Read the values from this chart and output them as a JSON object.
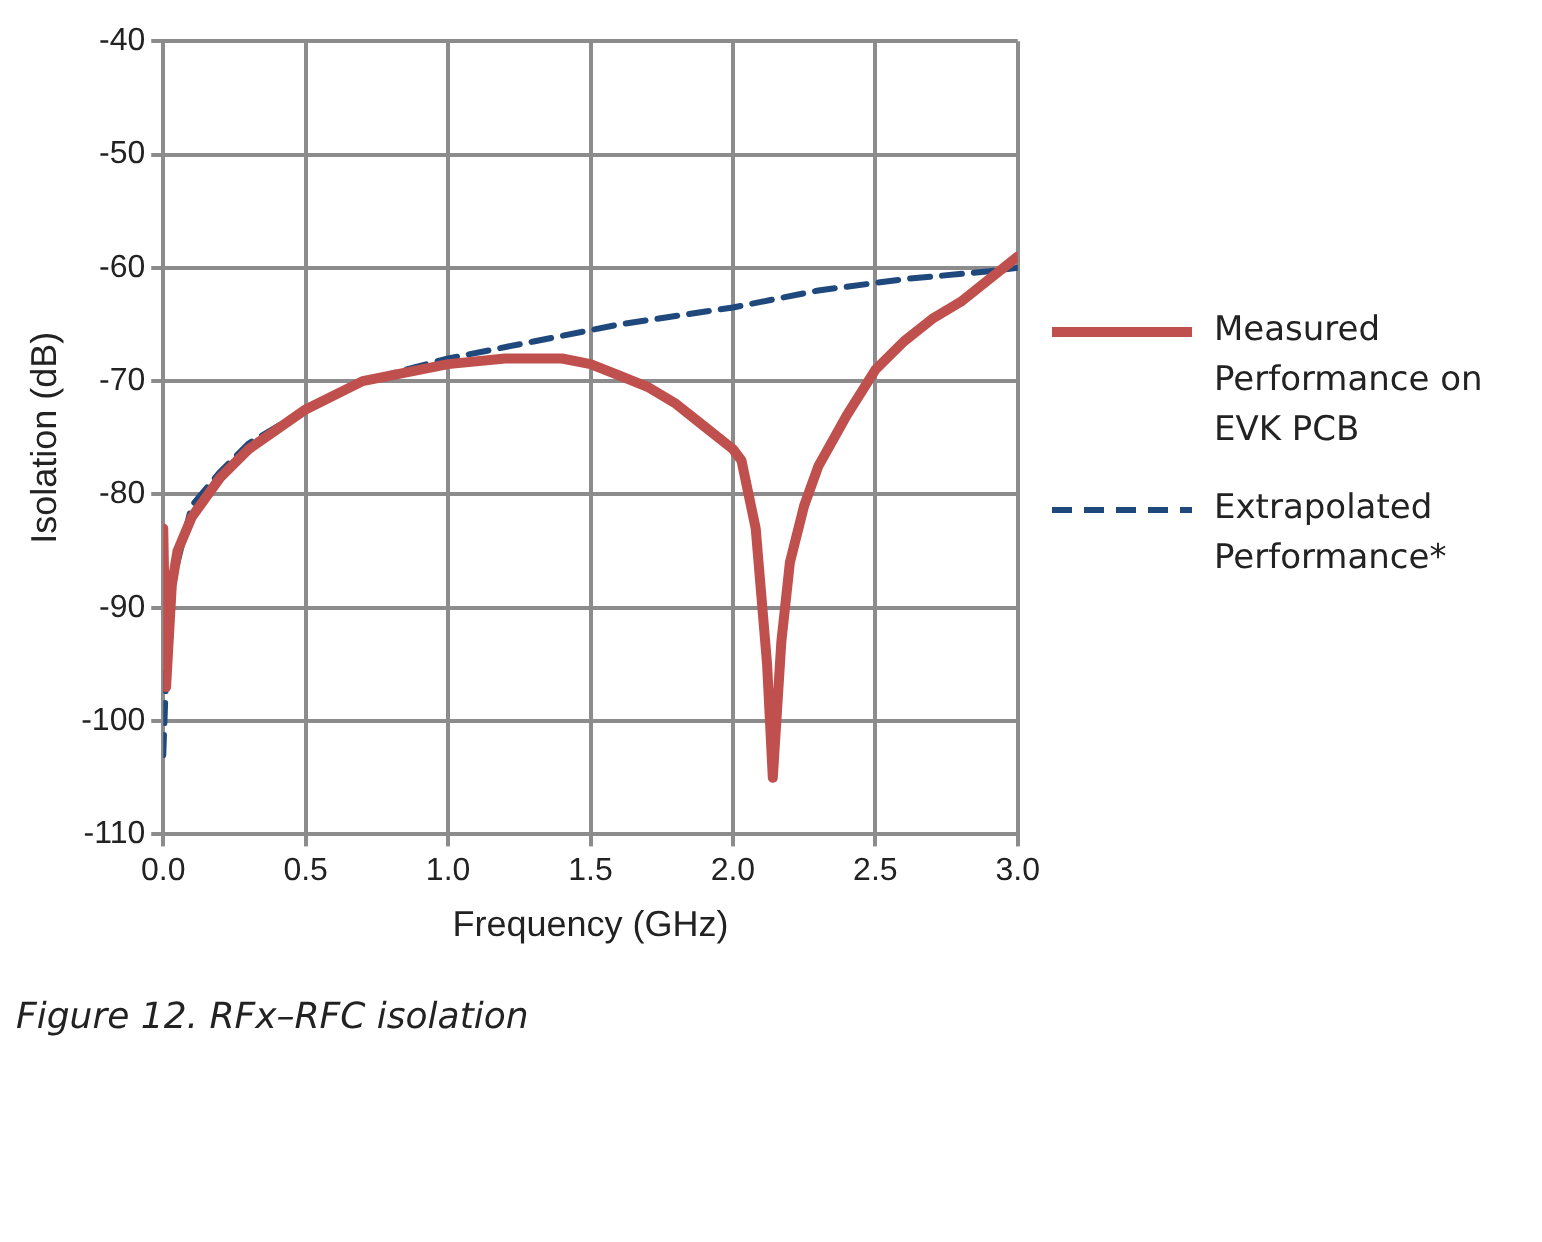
{
  "chart_data": {
    "type": "line",
    "xlabel": "Frequency (GHz)",
    "ylabel": "Isolation (dB)",
    "xlim": [
      0,
      3
    ],
    "ylim": [
      -110,
      -40
    ],
    "xticks": [
      {
        "value": 0,
        "label": "0.0"
      },
      {
        "value": 0.5,
        "label": "0.5"
      },
      {
        "value": 1,
        "label": "1.0"
      },
      {
        "value": 1.5,
        "label": "1.5"
      },
      {
        "value": 2,
        "label": "2.0"
      },
      {
        "value": 2.5,
        "label": "2.5"
      },
      {
        "value": 3,
        "label": "3.0"
      }
    ],
    "yticks": [
      -110,
      -100,
      -90,
      -80,
      -70,
      -60,
      -50,
      -40
    ],
    "grid": true,
    "legend": "right",
    "marker": "none",
    "series": [
      {
        "name": "Measured Performance on EVK PCB",
        "color": "#c0504d",
        "line_style": "solid",
        "x": [
          0,
          0.01,
          0.03,
          0.05,
          0.1,
          0.2,
          0.3,
          0.5,
          0.7,
          1.0,
          1.2,
          1.4,
          1.5,
          1.6,
          1.7,
          1.8,
          1.9,
          2.0,
          2.03,
          2.08,
          2.12,
          2.14,
          2.17,
          2.2,
          2.25,
          2.3,
          2.4,
          2.5,
          2.6,
          2.7,
          2.8,
          2.9,
          3.0
        ],
        "values": [
          -83,
          -97,
          -88,
          -85,
          -82,
          -78.5,
          -76,
          -72.5,
          -70,
          -68.5,
          -68,
          -68,
          -68.5,
          -69.5,
          -70.5,
          -72,
          -74,
          -76,
          -77,
          -83,
          -95,
          -105,
          -93,
          -86,
          -81,
          -77.5,
          -73,
          -69,
          -66.5,
          -64.5,
          -63,
          -61,
          -59
        ]
      },
      {
        "name": "Extrapolated Performance*",
        "color": "#1f497d",
        "line_style": "dashed",
        "x": [
          0,
          0.01,
          0.03,
          0.07,
          0.1,
          0.2,
          0.3,
          0.5,
          0.7,
          1.0,
          1.3,
          1.6,
          2.0,
          2.3,
          2.6,
          2.9,
          3.0
        ],
        "values": [
          -103,
          -96,
          -88,
          -84,
          -81,
          -78,
          -75.5,
          -72.5,
          -70,
          -68,
          -66.5,
          -65,
          -63.5,
          -62,
          -61,
          -60.3,
          -60
        ]
      }
    ],
    "annotations": [
      "Figure 12. RFx–RFC isolation"
    ]
  }
}
